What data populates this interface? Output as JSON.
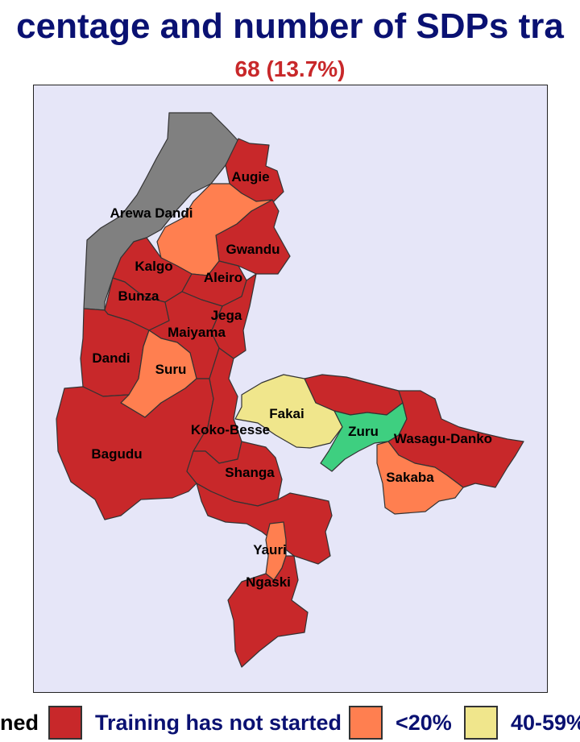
{
  "title": "centage and number of SDPs tra",
  "subtitle": "68 (13.7%)",
  "colors": {
    "not_started": "#c8282a",
    "lt20": "#ff7f50",
    "p40_59": "#f0e68c",
    "zuru": "#3ecf80",
    "no_data": "#808080",
    "background": "#e6e6f8"
  },
  "lgas": [
    {
      "name": "Augie",
      "color": "#c8282a"
    },
    {
      "name": "Arewa Dandi",
      "color": "#808080"
    },
    {
      "name": "Gwandu",
      "color": "#c8282a"
    },
    {
      "name": "Kalgo",
      "color": "#c8282a"
    },
    {
      "name": "Aleiro",
      "color": "#c8282a"
    },
    {
      "name": "Bunza",
      "color": "#c8282a"
    },
    {
      "name": "Jega",
      "color": "#c8282a"
    },
    {
      "name": "Maiyama",
      "color": "#c8282a"
    },
    {
      "name": "Dandi",
      "color": "#c8282a"
    },
    {
      "name": "Suru",
      "color": "#ff7f50"
    },
    {
      "name": "Fakai",
      "color": "#f0e68c"
    },
    {
      "name": "Koko-Besse",
      "color": "#c8282a"
    },
    {
      "name": "Zuru",
      "color": "#3ecf80"
    },
    {
      "name": "Wasagu-Danko",
      "color": "#c8282a"
    },
    {
      "name": "Bagudu",
      "color": "#c8282a"
    },
    {
      "name": "Shanga",
      "color": "#c8282a"
    },
    {
      "name": "Sakaba",
      "color": "#ff7f50"
    },
    {
      "name": "Yauri",
      "color": "#ff7f50"
    },
    {
      "name": "Ngaski",
      "color": "#c8282a"
    }
  ],
  "legend": [
    {
      "label": "ned",
      "color": null
    },
    {
      "label": "Training has not started",
      "color": "#c8282a"
    },
    {
      "label": "<20%",
      "color": "#ff7f50"
    },
    {
      "label": "40-59%",
      "color": "#f0e68c"
    }
  ]
}
